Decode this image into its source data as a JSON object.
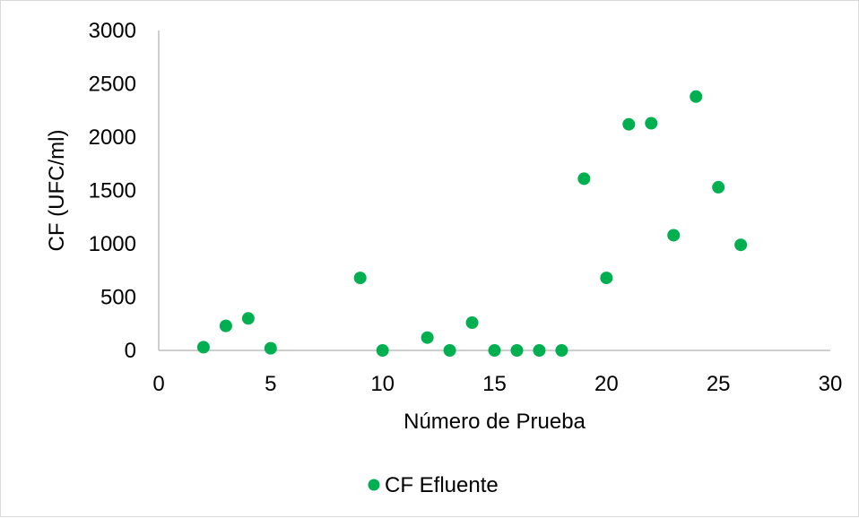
{
  "chart_data": {
    "type": "scatter",
    "title": "",
    "xlabel": "Número de Prueba",
    "ylabel": "CF (UFC/ml)",
    "xlim": [
      0,
      30
    ],
    "ylim": [
      0,
      3000
    ],
    "xticks": [
      0,
      5,
      10,
      15,
      20,
      25,
      30
    ],
    "yticks": [
      0,
      500,
      1000,
      1500,
      2000,
      2500,
      3000
    ],
    "grid": false,
    "legend_position": "bottom",
    "series": [
      {
        "name": "CF Efluente",
        "color": "#00b050",
        "points": [
          {
            "x": 2,
            "y": 30
          },
          {
            "x": 3,
            "y": 230
          },
          {
            "x": 4,
            "y": 300
          },
          {
            "x": 5,
            "y": 20
          },
          {
            "x": 9,
            "y": 680
          },
          {
            "x": 10,
            "y": 0
          },
          {
            "x": 12,
            "y": 120
          },
          {
            "x": 13,
            "y": 0
          },
          {
            "x": 14,
            "y": 260
          },
          {
            "x": 15,
            "y": 0
          },
          {
            "x": 16,
            "y": 0
          },
          {
            "x": 17,
            "y": 0
          },
          {
            "x": 18,
            "y": 0
          },
          {
            "x": 19,
            "y": 1610
          },
          {
            "x": 20,
            "y": 680
          },
          {
            "x": 21,
            "y": 2120
          },
          {
            "x": 22,
            "y": 2130
          },
          {
            "x": 23,
            "y": 1080
          },
          {
            "x": 24,
            "y": 2380
          },
          {
            "x": 25,
            "y": 1530
          },
          {
            "x": 26,
            "y": 990
          }
        ]
      }
    ]
  }
}
